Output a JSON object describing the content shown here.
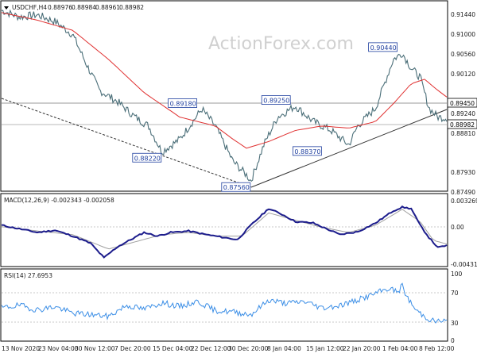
{
  "watermark": "ActionForex.com",
  "chart_data": [
    {
      "type": "line",
      "panel": "price",
      "title": "USDCHF,H4",
      "ohlc": [
        "0.88976",
        "0.88984",
        "0.88961",
        "0.88982"
      ],
      "price_tag": "0.88982",
      "level_tag": "0.89450",
      "y_ticks": [
        "0.91440",
        "0.91000",
        "0.90560",
        "0.90120",
        "0.89240",
        "0.88810",
        "0.87930",
        "0.87490"
      ],
      "ylim": [
        0.8735,
        0.9158
      ],
      "x_labels": [
        "13 Nov 2020",
        "23 Nov 04:00",
        "30 Nov 12:00",
        "7 Dec 20:00",
        "15 Dec 04:00",
        "22 Dec 12:00",
        "30 Dec 20:00",
        "8 Jan 04:00",
        "15 Jan 12:00",
        "22 Jan 20:00",
        "1 Feb 04:00",
        "8 Feb 12:00"
      ],
      "series": [
        {
          "role": "price",
          "x": [
            0,
            0.04,
            0.08,
            0.12,
            0.16,
            0.19,
            0.22,
            0.26,
            0.3,
            0.33,
            0.36,
            0.4,
            0.45,
            0.48,
            0.52,
            0.55,
            0.56,
            0.59,
            0.62,
            0.66,
            0.7,
            0.74,
            0.78,
            0.8,
            0.84,
            0.88,
            0.9,
            0.92,
            0.94,
            0.96,
            0.98,
            1.0
          ],
          "values": [
            0.914,
            0.9125,
            0.913,
            0.9115,
            0.9085,
            0.902,
            0.896,
            0.8935,
            0.89,
            0.888,
            0.8822,
            0.885,
            0.8918,
            0.888,
            0.88,
            0.877,
            0.8756,
            0.884,
            0.89,
            0.8925,
            0.889,
            0.887,
            0.8837,
            0.888,
            0.892,
            0.903,
            0.9044,
            0.901,
            0.899,
            0.892,
            0.89,
            0.8898
          ]
        },
        {
          "role": "moving-average",
          "x": [
            0,
            0.08,
            0.16,
            0.24,
            0.32,
            0.4,
            0.48,
            0.52,
            0.55,
            0.6,
            0.66,
            0.72,
            0.78,
            0.84,
            0.88,
            0.92,
            0.95,
            0.98,
            1.0
          ],
          "values": [
            0.9135,
            0.9118,
            0.9095,
            0.903,
            0.8955,
            0.89,
            0.888,
            0.885,
            0.883,
            0.8845,
            0.887,
            0.888,
            0.8875,
            0.889,
            0.893,
            0.8975,
            0.8985,
            0.896,
            0.8945
          ]
        }
      ],
      "annotations": [
        {
          "text": "0.88220",
          "x": 0.33,
          "y": 0.8822
        },
        {
          "text": "0.89180",
          "x": 0.41,
          "y": 0.8918
        },
        {
          "text": "0.87560",
          "x": 0.53,
          "y": 0.8756
        },
        {
          "text": "0.89250",
          "x": 0.62,
          "y": 0.8925
        },
        {
          "text": "0.88370",
          "x": 0.69,
          "y": 0.8837
        },
        {
          "text": "0.90440",
          "x": 0.86,
          "y": 0.9044
        }
      ],
      "horizontal_lines": [
        0.8945,
        0.88982
      ],
      "trendlines": [
        {
          "x": [
            0,
            0.56
          ],
          "values": [
            0.8961,
            0.8756
          ]
        },
        {
          "x": [
            0.56,
            1.0
          ],
          "values": [
            0.8756,
            0.8949
          ]
        }
      ]
    },
    {
      "type": "line",
      "panel": "macd",
      "title": "MACD(12,26,9) -0.002343 -0.002058",
      "y_ticks": [
        "0.003269",
        "0.00",
        "-0.004316"
      ],
      "ylim": [
        -0.005,
        0.004
      ],
      "series": [
        {
          "role": "macd",
          "x": [
            0,
            0.04,
            0.08,
            0.12,
            0.16,
            0.2,
            0.23,
            0.26,
            0.29,
            0.32,
            0.35,
            0.38,
            0.42,
            0.46,
            0.5,
            0.53,
            0.56,
            0.6,
            0.63,
            0.66,
            0.7,
            0.73,
            0.76,
            0.8,
            0.84,
            0.88,
            0.9,
            0.92,
            0.94,
            0.96,
            0.98,
            1.0
          ],
          "values": [
            0.0005,
            0.0,
            -0.0005,
            -0.0002,
            -0.001,
            -0.002,
            -0.004,
            -0.0025,
            -0.0015,
            -0.0005,
            -0.001,
            -0.0005,
            -0.0003,
            -0.0008,
            -0.0012,
            -0.0015,
            0.0005,
            0.0028,
            0.002,
            0.001,
            0.0008,
            0.0,
            -0.0008,
            -0.0004,
            0.0008,
            0.0025,
            0.003,
            0.0028,
            0.0005,
            -0.0012,
            -0.0026,
            -0.0023
          ]
        },
        {
          "role": "signal",
          "x": [
            0,
            0.08,
            0.16,
            0.24,
            0.3,
            0.36,
            0.42,
            0.48,
            0.54,
            0.6,
            0.66,
            0.72,
            0.78,
            0.84,
            0.9,
            0.94,
            0.97,
            1.0
          ],
          "values": [
            0.0003,
            -0.0003,
            -0.0008,
            -0.0028,
            -0.0018,
            -0.0008,
            -0.0005,
            -0.001,
            -0.001,
            0.0022,
            0.0012,
            0.0002,
            -0.0005,
            0.0005,
            0.0027,
            0.001,
            -0.0016,
            -0.0021
          ]
        }
      ]
    },
    {
      "type": "line",
      "panel": "rsi",
      "title": "RSI(14) 27.6953",
      "y_ticks": [
        "100",
        "70",
        "30",
        "0"
      ],
      "ylim": [
        0,
        100
      ],
      "levels": [
        70,
        30
      ],
      "series": [
        {
          "role": "rsi",
          "x": [
            0,
            0.04,
            0.08,
            0.12,
            0.16,
            0.2,
            0.24,
            0.28,
            0.32,
            0.36,
            0.4,
            0.44,
            0.48,
            0.52,
            0.56,
            0.6,
            0.64,
            0.68,
            0.72,
            0.76,
            0.8,
            0.84,
            0.87,
            0.89,
            0.9,
            0.91,
            0.93,
            0.95,
            0.97,
            1.0
          ],
          "values": [
            48,
            52,
            45,
            50,
            40,
            38,
            35,
            52,
            46,
            56,
            50,
            58,
            44,
            42,
            38,
            60,
            55,
            58,
            48,
            52,
            60,
            70,
            78,
            72,
            82,
            65,
            45,
            35,
            28,
            28
          ]
        }
      ]
    }
  ]
}
